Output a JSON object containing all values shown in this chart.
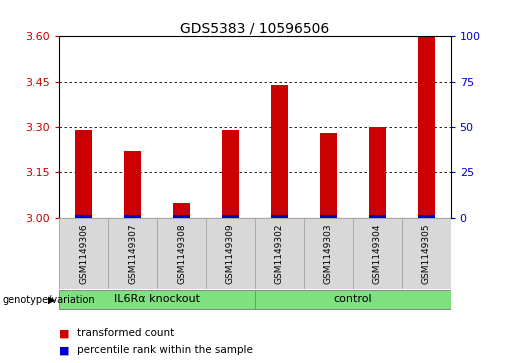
{
  "title": "GDS5383 / 10596506",
  "samples": [
    "GSM1149306",
    "GSM1149307",
    "GSM1149308",
    "GSM1149309",
    "GSM1149302",
    "GSM1149303",
    "GSM1149304",
    "GSM1149305"
  ],
  "red_values": [
    3.29,
    3.22,
    3.05,
    3.29,
    3.44,
    3.28,
    3.3,
    3.6
  ],
  "blue_values": [
    0.008,
    0.008,
    0.008,
    0.008,
    0.008,
    0.008,
    0.008,
    0.008
  ],
  "ylim_left": [
    3.0,
    3.6
  ],
  "yticks_left": [
    3.0,
    3.15,
    3.3,
    3.45,
    3.6
  ],
  "yticks_right": [
    0,
    25,
    50,
    75,
    100
  ],
  "base": 3.0,
  "groups": [
    {
      "label": "IL6Rα knockout",
      "start": 0,
      "end": 4,
      "color": "#7EE07E"
    },
    {
      "label": "control",
      "start": 4,
      "end": 8,
      "color": "#7EE07E"
    }
  ],
  "bar_width": 0.35,
  "red_color": "#cc0000",
  "blue_color": "#0000cc",
  "bg_color": "#d8d8d8",
  "plot_bg": "#ffffff",
  "left_tick_color": "#cc0000",
  "right_tick_color": "#0000cc",
  "legend_red_label": "transformed count",
  "legend_blue_label": "percentile rank within the sample",
  "genotype_label": "genotype/variation",
  "title_fontsize": 10,
  "tick_fontsize": 8,
  "label_fontsize": 7
}
